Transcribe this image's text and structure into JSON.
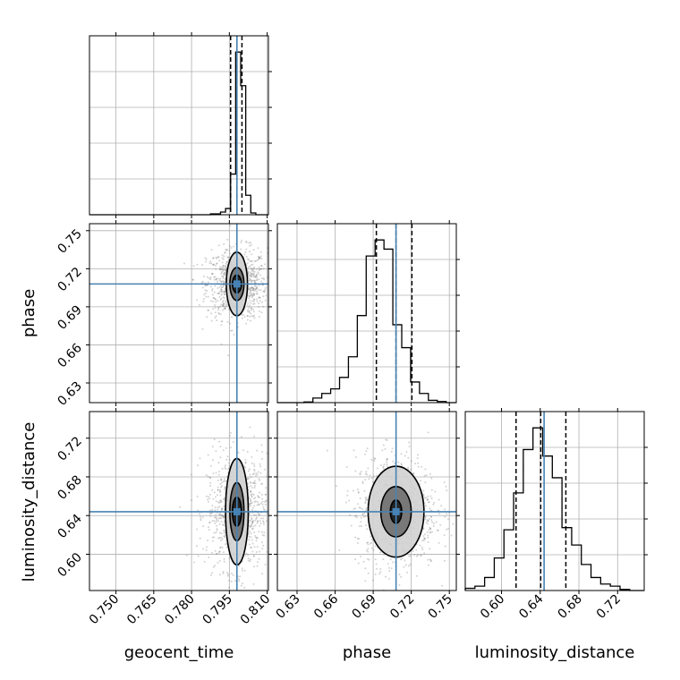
{
  "chart_data": {
    "type": "corner",
    "parameters": [
      "geocent_time",
      "phase",
      "luminosity_distance"
    ],
    "axis_labels": {
      "x_bottom": [
        "geocent_time",
        "phase",
        "luminosity_distance"
      ],
      "y_left": [
        "phase",
        "luminosity_distance"
      ]
    },
    "truths": {
      "geocent_time": 0.798,
      "phase": 0.708,
      "luminosity_distance": 0.644
    },
    "quantiles": {
      "geocent_time": [
        0.7955,
        0.798,
        0.8
      ],
      "phase": [
        0.6925,
        0.708,
        0.7205
      ],
      "luminosity_distance": [
        0.615,
        0.6405,
        0.6665
      ]
    },
    "ranges": {
      "geocent_time": [
        0.7395,
        0.8105
      ],
      "phase": [
        0.6145,
        0.7555
      ],
      "luminosity_distance": [
        0.5625,
        0.7475
      ]
    },
    "ticks": {
      "geocent_time": {
        "values": [
          0.75,
          0.765,
          0.78,
          0.795,
          0.81
        ],
        "labels": [
          "0.750",
          "0.765",
          "0.780",
          "0.795",
          "0.810"
        ]
      },
      "phase": {
        "values": [
          0.63,
          0.66,
          0.69,
          0.72,
          0.75
        ],
        "labels": [
          "0.63",
          "0.66",
          "0.69",
          "0.72",
          "0.75"
        ]
      },
      "luminosity_distance": {
        "values": [
          0.6,
          0.64,
          0.68,
          0.72
        ],
        "labels": [
          "0.60",
          "0.64",
          "0.68",
          "0.72"
        ]
      }
    },
    "histograms": {
      "geocent_time": {
        "edges": [
          0.7395,
          0.7415,
          0.7435,
          0.7455,
          0.7475,
          0.7495,
          0.7515,
          0.7535,
          0.7555,
          0.7575,
          0.7595,
          0.7615,
          0.7635,
          0.7655,
          0.7675,
          0.7695,
          0.7715,
          0.7735,
          0.7755,
          0.7775,
          0.7795,
          0.7815,
          0.7835,
          0.7855,
          0.7875,
          0.7895,
          0.7915,
          0.7935,
          0.7955,
          0.7975,
          0.7995,
          0.8015,
          0.8035,
          0.8055,
          0.8075,
          0.8095,
          0.8105
        ],
        "counts": [
          0,
          0,
          0,
          0,
          0,
          0,
          0,
          0,
          0,
          0,
          0,
          0,
          0,
          0,
          0,
          0,
          0,
          0,
          0,
          0,
          0,
          0,
          0,
          0,
          0.5,
          0.5,
          1.5,
          3.5,
          23,
          92,
          73,
          11,
          1,
          0,
          0,
          0
        ]
      },
      "phase": {
        "edges": [
          0.6145,
          0.6215,
          0.6285,
          0.6355,
          0.6425,
          0.6495,
          0.6565,
          0.6635,
          0.6705,
          0.6775,
          0.6845,
          0.6915,
          0.6985,
          0.7055,
          0.7125,
          0.7195,
          0.7265,
          0.7335,
          0.7405,
          0.7475,
          0.7555
        ],
        "counts": [
          0,
          0,
          0,
          0.3,
          2,
          4,
          6,
          11,
          20,
          38,
          64,
          71,
          67,
          34,
          24,
          9,
          4,
          1,
          0.5,
          0
        ]
      },
      "luminosity_distance": {
        "edges": [
          0.5625,
          0.5725,
          0.5825,
          0.5925,
          0.6025,
          0.6125,
          0.6225,
          0.6325,
          0.6425,
          0.6525,
          0.6625,
          0.6725,
          0.6825,
          0.6925,
          0.7025,
          0.7125,
          0.7225,
          0.7325,
          0.7475
        ],
        "counts": [
          1,
          2,
          6,
          15,
          28,
          45,
          65,
          75,
          62,
          52,
          29,
          21,
          12,
          6,
          3,
          2,
          0.5,
          0
        ]
      }
    },
    "contours": {
      "phase_vs_geocent_time": {
        "center": [
          0.798,
          0.708
        ],
        "levels": [
          {
            "rx": 0.0018,
            "ry": 0.007,
            "fill": "#1a1a1a"
          },
          {
            "rx": 0.0028,
            "ry": 0.013,
            "fill": "#6e6e6e"
          },
          {
            "rx": 0.0042,
            "ry": 0.025,
            "fill": "#d2d2d2"
          }
        ]
      },
      "luminosity_distance_vs_geocent_time": {
        "center": [
          0.798,
          0.644
        ],
        "levels": [
          {
            "rx": 0.0018,
            "ry": 0.015,
            "fill": "#1a1a1a"
          },
          {
            "rx": 0.0028,
            "ry": 0.03,
            "fill": "#6e6e6e"
          },
          {
            "rx": 0.0045,
            "ry": 0.055,
            "fill": "#d2d2d2"
          }
        ]
      },
      "luminosity_distance_vs_phase": {
        "center": [
          0.708,
          0.644
        ],
        "levels": [
          {
            "rx": 0.0045,
            "ry": 0.012,
            "fill": "#1a1a1a"
          },
          {
            "rx": 0.012,
            "ry": 0.026,
            "fill": "#6e6e6e"
          },
          {
            "rx": 0.022,
            "ry": 0.047,
            "fill": "#d2d2d2"
          }
        ]
      }
    },
    "scatter_spread": {
      "phase_vs_geocent_time": [
        0.006,
        0.014
      ],
      "luminosity_distance_vs_geocent_time": [
        0.006,
        0.03
      ],
      "luminosity_distance_vs_phase": [
        0.016,
        0.03
      ]
    },
    "grid": true,
    "colors": {
      "truth": "#4682b4",
      "hist": "#000000",
      "grid": "#b0b0b0",
      "scatter": "#7f7f7f"
    }
  }
}
